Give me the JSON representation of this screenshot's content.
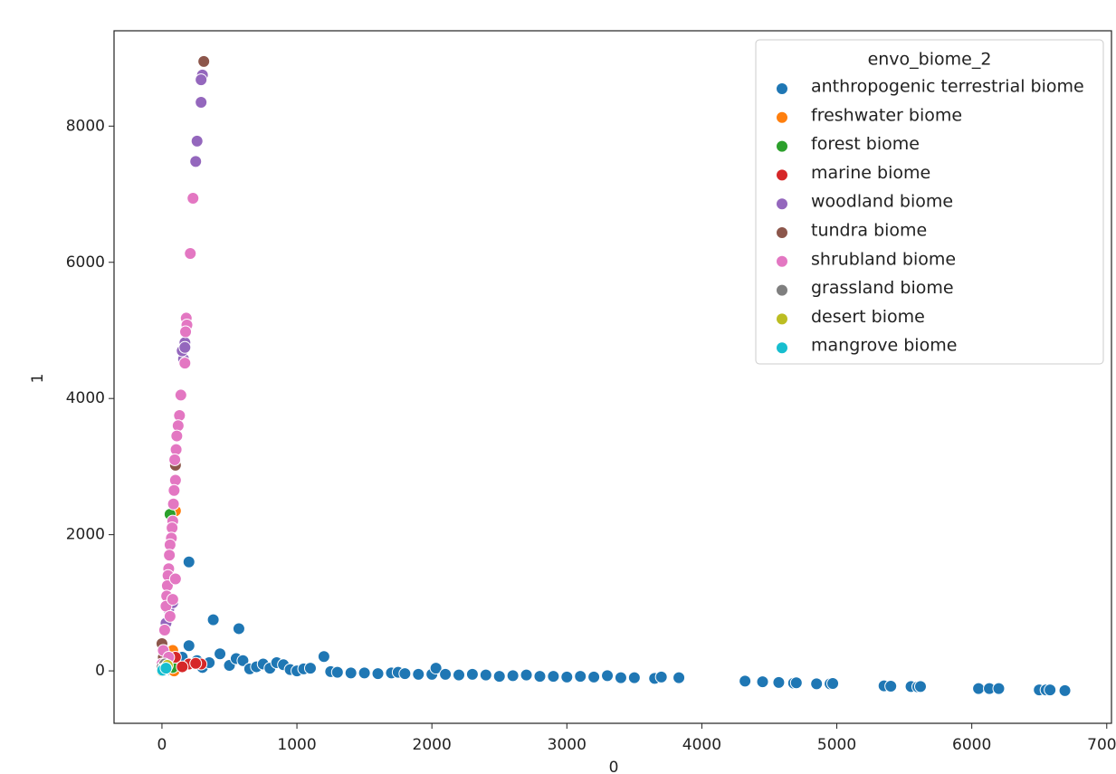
{
  "chart_data": {
    "type": "scatter",
    "xlabel": "0",
    "ylabel": "1",
    "legend_title": "envo_biome_2",
    "legend": "upper right",
    "xlim": [
      -355,
      7035
    ],
    "ylim": [
      -770,
      9400
    ],
    "xticks": [
      0,
      1000,
      2000,
      3000,
      4000,
      5000,
      6000,
      7000
    ],
    "yticks": [
      0,
      2000,
      4000,
      6000,
      8000
    ],
    "series": [
      {
        "name": "anthropogenic terrestrial biome",
        "color": "#1f77b4",
        "x": [
          0,
          50,
          100,
          150,
          200,
          200,
          380,
          570,
          430,
          260,
          300,
          350,
          500,
          550,
          600,
          650,
          700,
          750,
          800,
          850,
          900,
          950,
          1000,
          1050,
          1100,
          1200,
          1250,
          1300,
          1400,
          1500,
          1600,
          1700,
          1750,
          1800,
          1900,
          2000,
          2030,
          2100,
          2200,
          2300,
          2400,
          2500,
          2600,
          2700,
          2800,
          2900,
          3000,
          3100,
          3200,
          3300,
          3400,
          3500,
          3650,
          3700,
          3830,
          4320,
          4450,
          4570,
          4680,
          4700,
          4850,
          4950,
          4970,
          5350,
          5400,
          5550,
          5600,
          5620,
          6050,
          6130,
          6200,
          6500,
          6550,
          6580,
          6690
        ],
        "values": [
          0,
          20,
          10,
          200,
          1600,
          370,
          750,
          620,
          250,
          150,
          50,
          120,
          80,
          180,
          150,
          30,
          60,
          100,
          40,
          120,
          90,
          20,
          0,
          30,
          40,
          210,
          -10,
          -20,
          -30,
          -30,
          -40,
          -30,
          -20,
          -40,
          -50,
          -50,
          40,
          -50,
          -60,
          -50,
          -60,
          -80,
          -70,
          -60,
          -80,
          -80,
          -90,
          -80,
          -90,
          -70,
          -100,
          -100,
          -110,
          -90,
          -100,
          -150,
          -160,
          -170,
          -180,
          -175,
          -190,
          -190,
          -185,
          -220,
          -225,
          -230,
          -235,
          -230,
          -260,
          -260,
          -260,
          -280,
          -280,
          -280,
          -290
        ]
      },
      {
        "name": "freshwater biome",
        "color": "#ff7f0e",
        "x": [
          0,
          30,
          60,
          100,
          80,
          120,
          20,
          90
        ],
        "values": [
          0,
          100,
          200,
          2350,
          300,
          50,
          20,
          0
        ]
      },
      {
        "name": "forest biome",
        "color": "#2ca02c",
        "x": [
          60,
          40,
          80
        ],
        "values": [
          2300,
          100,
          50
        ]
      },
      {
        "name": "marine biome",
        "color": "#d62728",
        "x": [
          200,
          290,
          250,
          100,
          150
        ],
        "values": [
          100,
          100,
          110,
          200,
          60
        ]
      },
      {
        "name": "woodland biome",
        "color": "#9467bd",
        "x": [
          300,
          290,
          290,
          260,
          250,
          170,
          160,
          150,
          30,
          50,
          80,
          170
        ],
        "values": [
          8750,
          8680,
          8350,
          7780,
          7480,
          4820,
          4580,
          4700,
          700,
          900,
          1000,
          4750
        ]
      },
      {
        "name": "tundra biome",
        "color": "#8c564b",
        "x": [
          310,
          100,
          0,
          20,
          10
        ],
        "values": [
          8950,
          3020,
          400,
          600,
          200
        ]
      },
      {
        "name": "shrubland biome",
        "color": "#e377c2",
        "x": [
          230,
          210,
          180,
          185,
          175,
          170,
          140,
          130,
          120,
          110,
          105,
          95,
          100,
          90,
          85,
          80,
          75,
          70,
          60,
          55,
          50,
          45,
          40,
          35,
          30,
          80,
          60,
          100,
          20,
          10,
          0,
          50
        ],
        "values": [
          6940,
          6130,
          5180,
          5080,
          4980,
          4520,
          4050,
          3750,
          3600,
          3450,
          3250,
          3100,
          2800,
          2650,
          2450,
          2200,
          2100,
          1950,
          1850,
          1700,
          1500,
          1400,
          1250,
          1100,
          950,
          1050,
          800,
          1350,
          600,
          300,
          100,
          200
        ]
      },
      {
        "name": "grassland biome",
        "color": "#7f7f7f",
        "x": [
          0,
          20
        ],
        "values": [
          50,
          100
        ]
      },
      {
        "name": "desert biome",
        "color": "#bcbd22",
        "x": [
          10,
          40
        ],
        "values": [
          30,
          80
        ]
      },
      {
        "name": "mangrove biome",
        "color": "#17becf",
        "x": [
          5,
          30
        ],
        "values": [
          10,
          40
        ]
      }
    ]
  }
}
